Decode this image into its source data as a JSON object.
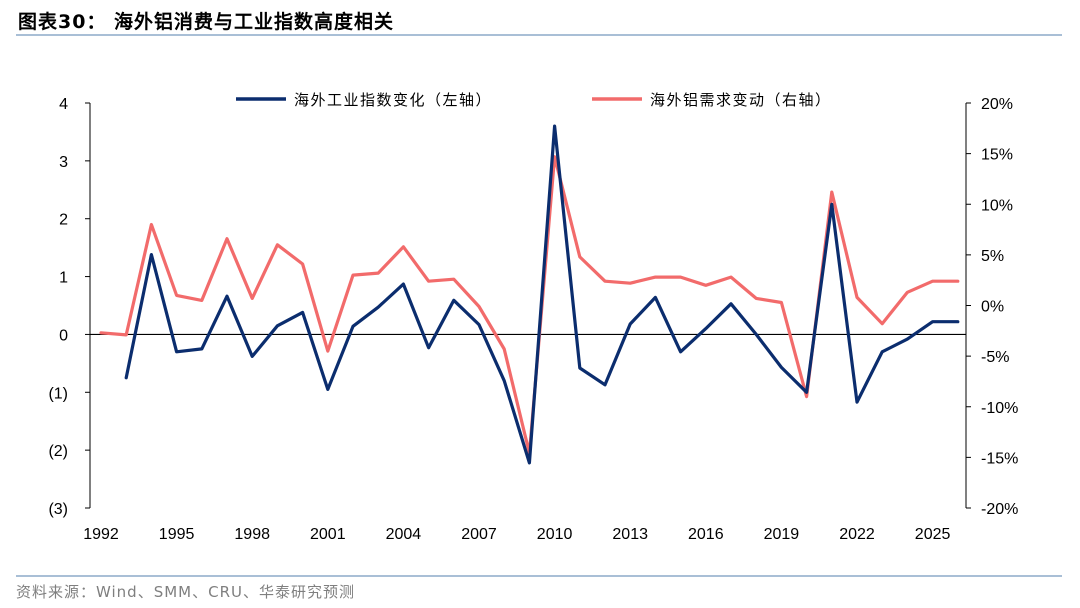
{
  "figure": {
    "title": "图表30：  海外铝消费与工业指数高度相关",
    "source": "资料来源：Wind、SMM、CRU、华泰研究预测"
  },
  "chart_data": {
    "type": "line",
    "years": [
      1992,
      1993,
      1994,
      1995,
      1996,
      1997,
      1998,
      1999,
      2000,
      2001,
      2002,
      2003,
      2004,
      2005,
      2006,
      2007,
      2008,
      2009,
      2010,
      2011,
      2012,
      2013,
      2014,
      2015,
      2016,
      2017,
      2018,
      2019,
      2020,
      2021,
      2022,
      2023,
      2024,
      2025,
      2026
    ],
    "series": [
      {
        "name": "海外工业指数变化（左轴）",
        "axis": "left",
        "color": "#0b2d6e",
        "values": [
          null,
          -0.75,
          1.38,
          -0.3,
          -0.25,
          0.66,
          -0.38,
          0.15,
          0.38,
          -0.95,
          0.14,
          0.47,
          0.87,
          -0.23,
          0.59,
          0.17,
          -0.8,
          -2.22,
          3.6,
          -0.58,
          -0.87,
          0.18,
          0.64,
          -0.3,
          0.1,
          0.53,
          0.0,
          -0.57,
          -1.0,
          2.25,
          -1.17,
          -0.3,
          -0.08,
          0.22,
          0.22
        ]
      },
      {
        "name": "海外铝需求变动（右轴）",
        "axis": "right",
        "color": "#f26b6b",
        "values": [
          -2.7,
          -2.9,
          8.0,
          1.0,
          0.5,
          6.6,
          0.7,
          6.0,
          4.1,
          -4.5,
          3.0,
          3.2,
          5.8,
          2.4,
          2.6,
          -0.1,
          -4.3,
          -14.6,
          14.7,
          4.8,
          2.4,
          2.2,
          2.8,
          2.8,
          2.0,
          2.8,
          0.7,
          0.3,
          -9.0,
          11.2,
          0.8,
          -1.8,
          1.3,
          2.4,
          2.4
        ]
      }
    ],
    "left_axis": {
      "min": -3,
      "max": 4,
      "ticks": [
        4,
        3,
        2,
        1,
        0,
        -1,
        -2,
        -3
      ],
      "tick_labels": [
        "4",
        "3",
        "2",
        "1",
        "0",
        "(1)",
        "(2)",
        "(3)"
      ]
    },
    "right_axis": {
      "min": -20,
      "max": 20,
      "ticks": [
        20,
        15,
        10,
        5,
        0,
        -5,
        -10,
        -15,
        -20
      ],
      "tick_labels": [
        "20%",
        "15%",
        "10%",
        "5%",
        "0%",
        "-5%",
        "-10%",
        "-15%",
        "-20%"
      ]
    },
    "x_axis": {
      "ticks": [
        1992,
        1995,
        1998,
        2001,
        2004,
        2007,
        2010,
        2013,
        2016,
        2019,
        2022,
        2025
      ],
      "tick_labels": [
        "1992",
        "1995",
        "1998",
        "2001",
        "2004",
        "2007",
        "2010",
        "2013",
        "2016",
        "2019",
        "2022",
        "2025"
      ]
    },
    "legend": {
      "position": "top-center",
      "labels": [
        "海外工业指数变化（左轴）",
        "海外铝需求变动（右轴）"
      ]
    },
    "grid": false
  }
}
